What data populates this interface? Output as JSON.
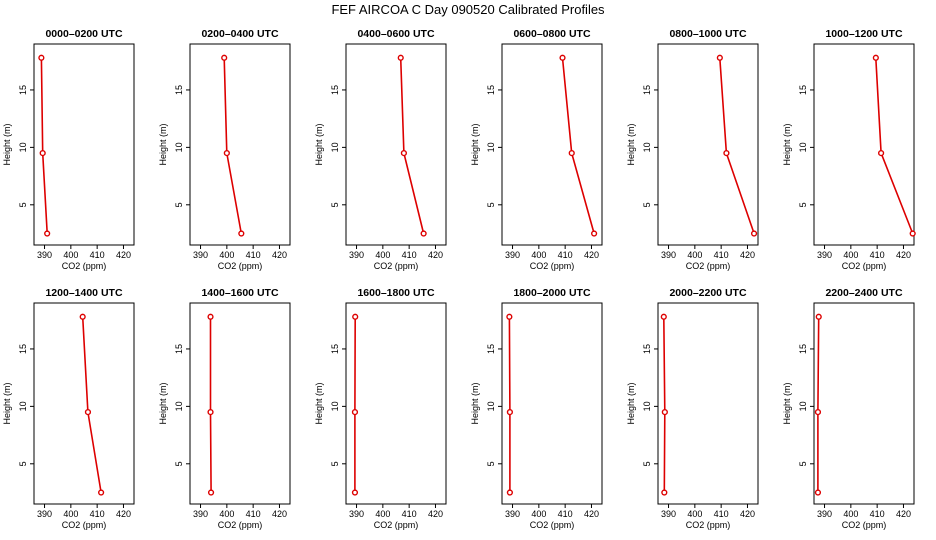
{
  "figure": {
    "title": "FEF AIRCOA C  Day 090520  Calibrated Profiles",
    "colors": {
      "series": "#dd0000",
      "axis": "#000000",
      "background": "#ffffff"
    }
  },
  "chart_data": [
    {
      "type": "line",
      "title": "0000–0200 UTC",
      "xlabel": "CO2 (ppm)",
      "ylabel": "Height (m)",
      "xlim": [
        386,
        424
      ],
      "ylim": [
        1.5,
        19
      ],
      "xticks": [
        390,
        400,
        410,
        420
      ],
      "yticks": [
        5,
        10,
        15
      ],
      "x": [
        388.8,
        389.3,
        391.0
      ],
      "y": [
        17.8,
        9.5,
        2.5
      ]
    },
    {
      "type": "line",
      "title": "0200–0400 UTC",
      "xlabel": "CO2 (ppm)",
      "ylabel": "Height (m)",
      "xlim": [
        386,
        424
      ],
      "ylim": [
        1.5,
        19
      ],
      "xticks": [
        390,
        400,
        410,
        420
      ],
      "yticks": [
        5,
        10,
        15
      ],
      "x": [
        399.0,
        400.0,
        405.5
      ],
      "y": [
        17.8,
        9.5,
        2.5
      ]
    },
    {
      "type": "line",
      "title": "0400–0600 UTC",
      "xlabel": "CO2 (ppm)",
      "ylabel": "Height (m)",
      "xlim": [
        386,
        424
      ],
      "ylim": [
        1.5,
        19
      ],
      "xticks": [
        390,
        400,
        410,
        420
      ],
      "yticks": [
        5,
        10,
        15
      ],
      "x": [
        406.8,
        408.0,
        415.5
      ],
      "y": [
        17.8,
        9.5,
        2.5
      ]
    },
    {
      "type": "line",
      "title": "0600–0800 UTC",
      "xlabel": "CO2 (ppm)",
      "ylabel": "Height (m)",
      "xlim": [
        386,
        424
      ],
      "ylim": [
        1.5,
        19
      ],
      "xticks": [
        390,
        400,
        410,
        420
      ],
      "yticks": [
        5,
        10,
        15
      ],
      "x": [
        409.0,
        412.5,
        421.0
      ],
      "y": [
        17.8,
        9.5,
        2.5
      ]
    },
    {
      "type": "line",
      "title": "0800–1000 UTC",
      "xlabel": "CO2 (ppm)",
      "ylabel": "Height (m)",
      "xlim": [
        386,
        424
      ],
      "ylim": [
        1.5,
        19
      ],
      "xticks": [
        390,
        400,
        410,
        420
      ],
      "yticks": [
        5,
        10,
        15
      ],
      "x": [
        409.5,
        412.0,
        422.5
      ],
      "y": [
        17.8,
        9.5,
        2.5
      ]
    },
    {
      "type": "line",
      "title": "1000–1200 UTC",
      "xlabel": "CO2 (ppm)",
      "ylabel": "Height (m)",
      "xlim": [
        386,
        424
      ],
      "ylim": [
        1.5,
        19
      ],
      "xticks": [
        390,
        400,
        410,
        420
      ],
      "yticks": [
        5,
        10,
        15
      ],
      "x": [
        409.5,
        411.5,
        423.5
      ],
      "y": [
        17.8,
        9.5,
        2.5
      ]
    },
    {
      "type": "line",
      "title": "1200–1400 UTC",
      "xlabel": "CO2 (ppm)",
      "ylabel": "Height (m)",
      "xlim": [
        386,
        424
      ],
      "ylim": [
        1.5,
        19
      ],
      "xticks": [
        390,
        400,
        410,
        420
      ],
      "yticks": [
        5,
        10,
        15
      ],
      "x": [
        404.5,
        406.5,
        411.5
      ],
      "y": [
        17.8,
        9.5,
        2.5
      ]
    },
    {
      "type": "line",
      "title": "1400–1600 UTC",
      "xlabel": "CO2 (ppm)",
      "ylabel": "Height (m)",
      "xlim": [
        386,
        424
      ],
      "ylim": [
        1.5,
        19
      ],
      "xticks": [
        390,
        400,
        410,
        420
      ],
      "yticks": [
        5,
        10,
        15
      ],
      "x": [
        393.8,
        393.8,
        394.0
      ],
      "y": [
        17.8,
        9.5,
        2.5
      ]
    },
    {
      "type": "line",
      "title": "1600–1800 UTC",
      "xlabel": "CO2 (ppm)",
      "ylabel": "Height (m)",
      "xlim": [
        386,
        424
      ],
      "ylim": [
        1.5,
        19
      ],
      "xticks": [
        390,
        400,
        410,
        420
      ],
      "yticks": [
        5,
        10,
        15
      ],
      "x": [
        389.5,
        389.4,
        389.4
      ],
      "y": [
        17.8,
        9.5,
        2.5
      ]
    },
    {
      "type": "line",
      "title": "1800–2000 UTC",
      "xlabel": "CO2 (ppm)",
      "ylabel": "Height (m)",
      "xlim": [
        386,
        424
      ],
      "ylim": [
        1.5,
        19
      ],
      "xticks": [
        390,
        400,
        410,
        420
      ],
      "yticks": [
        5,
        10,
        15
      ],
      "x": [
        388.8,
        389.0,
        389.0
      ],
      "y": [
        17.8,
        9.5,
        2.5
      ]
    },
    {
      "type": "line",
      "title": "2000–2200 UTC",
      "xlabel": "CO2 (ppm)",
      "ylabel": "Height (m)",
      "xlim": [
        386,
        424
      ],
      "ylim": [
        1.5,
        19
      ],
      "xticks": [
        390,
        400,
        410,
        420
      ],
      "yticks": [
        5,
        10,
        15
      ],
      "x": [
        388.2,
        388.6,
        388.4
      ],
      "y": [
        17.8,
        9.5,
        2.5
      ]
    },
    {
      "type": "line",
      "title": "2200–2400 UTC",
      "xlabel": "CO2 (ppm)",
      "ylabel": "Height (m)",
      "xlim": [
        386,
        424
      ],
      "ylim": [
        1.5,
        19
      ],
      "xticks": [
        390,
        400,
        410,
        420
      ],
      "yticks": [
        5,
        10,
        15
      ],
      "x": [
        387.8,
        387.5,
        387.5
      ],
      "y": [
        17.8,
        9.5,
        2.5
      ]
    }
  ]
}
